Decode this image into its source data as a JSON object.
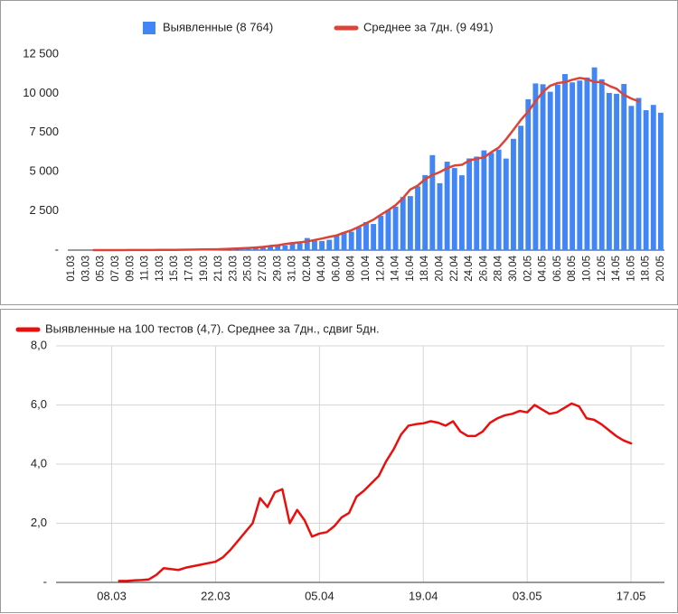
{
  "chart_data": [
    {
      "type": "bar",
      "categories": [
        "01.03",
        null,
        "03.03",
        null,
        "05.03",
        null,
        "07.03",
        null,
        "09.03",
        null,
        "11.03",
        null,
        "13.03",
        null,
        "15.03",
        null,
        "17.03",
        null,
        "19.03",
        null,
        "21.03",
        null,
        "23.03",
        null,
        "25.03",
        null,
        "27.03",
        null,
        "29.03",
        null,
        "31.03",
        null,
        "02.04",
        null,
        "04.04",
        null,
        "06.04",
        null,
        "08.04",
        null,
        "10.04",
        null,
        "12.04",
        null,
        "14.04",
        null,
        "16.04",
        null,
        "18.04",
        null,
        "20.04",
        null,
        "22.04",
        null,
        "24.04",
        null,
        "26.04",
        null,
        "28.04",
        null,
        "30.04",
        null,
        "02.05",
        null,
        "04.05",
        null,
        "06.05",
        null,
        "08.05",
        null,
        "10.05",
        null,
        "12.05",
        null,
        "14.05",
        null,
        "16.05",
        null,
        "18.05",
        null,
        "20.05"
      ],
      "series": [
        {
          "name": "Выявленные (8 764)",
          "type": "bar",
          "color": "#4285f4",
          "values": [
            0,
            1,
            0,
            0,
            1,
            6,
            0,
            3,
            0,
            3,
            8,
            6,
            17,
            14,
            4,
            30,
            21,
            33,
            52,
            54,
            53,
            61,
            71,
            57,
            163,
            182,
            196,
            228,
            270,
            302,
            501,
            440,
            771,
            601,
            582,
            658,
            954,
            1154,
            1175,
            1459,
            1786,
            1667,
            2186,
            2558,
            2774,
            3388,
            3448,
            4070,
            4785,
            6060,
            4268,
            5642,
            5236,
            4774,
            5849,
            5966,
            6361,
            6198,
            6411,
            5841,
            7099,
            7933,
            9623,
            10633,
            10581,
            10102,
            10559,
            11231,
            10699,
            10817,
            11012,
            11656,
            10899,
            10028,
            9974,
            10598,
            9200,
            9709,
            8926,
            9263,
            8764
          ]
        },
        {
          "name": "Среднее за 7дн. (9 491)",
          "type": "line",
          "color": "#db4437",
          "values": [
            null,
            null,
            null,
            1,
            2,
            1,
            2,
            3,
            4,
            5,
            7,
            7,
            12,
            14,
            18,
            24,
            30,
            35,
            43,
            49,
            54,
            73,
            92,
            112,
            137,
            167,
            200,
            263,
            303,
            387,
            445,
            495,
            551,
            644,
            737,
            842,
            940,
            1110,
            1265,
            1483,
            1712,
            1944,
            2260,
            2544,
            2870,
            3316,
            3869,
            4113,
            4523,
            4787,
            4976,
            5231,
            5399,
            5442,
            5718,
            5828,
            5914,
            6246,
            6544,
            7067,
            7677,
            8303,
            8830,
            9504,
            10095,
            10490,
            10660,
            10714,
            10868,
            10982,
            10906,
            10726,
            10712,
            10481,
            10295,
            9905,
            9671,
            9491,
            null,
            null,
            null
          ]
        }
      ],
      "ylim": [
        0,
        12500
      ],
      "yticks": [
        {
          "value": 0,
          "label": "-"
        },
        {
          "value": 2500,
          "label": "2 500"
        },
        {
          "value": 5000,
          "label": "5 000"
        },
        {
          "value": 7500,
          "label": "7 500"
        },
        {
          "value": 10000,
          "label": "10 000"
        },
        {
          "value": 12500,
          "label": "12 500"
        }
      ],
      "grid": false
    },
    {
      "type": "line",
      "categories": [
        null,
        null,
        null,
        null,
        null,
        null,
        null,
        "08.03",
        null,
        null,
        null,
        null,
        null,
        null,
        null,
        null,
        null,
        null,
        null,
        null,
        null,
        "22.03",
        null,
        null,
        null,
        null,
        null,
        null,
        null,
        null,
        null,
        null,
        null,
        null,
        null,
        "05.04",
        null,
        null,
        null,
        null,
        null,
        null,
        null,
        null,
        null,
        null,
        null,
        null,
        null,
        "19.04",
        null,
        null,
        null,
        null,
        null,
        null,
        null,
        null,
        null,
        null,
        null,
        null,
        null,
        "03.05",
        null,
        null,
        null,
        null,
        null,
        null,
        null,
        null,
        null,
        null,
        null,
        null,
        null,
        "17.05",
        null,
        null,
        null,
        null
      ],
      "series": [
        {
          "name": "Выявленные на 100 тестов (4,7). Среднее за 7дн., сдвиг 5дн.",
          "type": "line",
          "color": "#e8100f",
          "values": [
            null,
            null,
            null,
            null,
            null,
            null,
            null,
            null,
            0.05,
            0.05,
            0.07,
            0.08,
            0.1,
            0.25,
            0.48,
            0.45,
            0.42,
            0.5,
            0.55,
            0.6,
            0.65,
            0.7,
            0.85,
            1.1,
            1.4,
            1.7,
            2.0,
            2.85,
            2.55,
            3.05,
            3.15,
            2.0,
            2.45,
            2.1,
            1.55,
            1.65,
            1.7,
            1.9,
            2.2,
            2.35,
            2.9,
            3.1,
            3.35,
            3.6,
            4.1,
            4.5,
            5.0,
            5.3,
            5.35,
            5.38,
            5.45,
            5.4,
            5.3,
            5.45,
            5.1,
            4.95,
            4.95,
            5.1,
            5.4,
            5.55,
            5.65,
            5.7,
            5.8,
            5.75,
            6.0,
            5.85,
            5.7,
            5.75,
            5.9,
            6.05,
            5.95,
            5.55,
            5.5,
            5.35,
            5.15,
            4.95,
            4.8,
            4.7,
            null,
            null,
            null,
            null
          ]
        }
      ],
      "ylim": [
        0,
        8
      ],
      "yticks": [
        {
          "value": 0,
          "label": "-"
        },
        {
          "value": 2,
          "label": "2,0"
        },
        {
          "value": 4,
          "label": "4,0"
        },
        {
          "value": 6,
          "label": "6,0"
        },
        {
          "value": 8,
          "label": "8,0"
        }
      ],
      "grid": true
    }
  ]
}
